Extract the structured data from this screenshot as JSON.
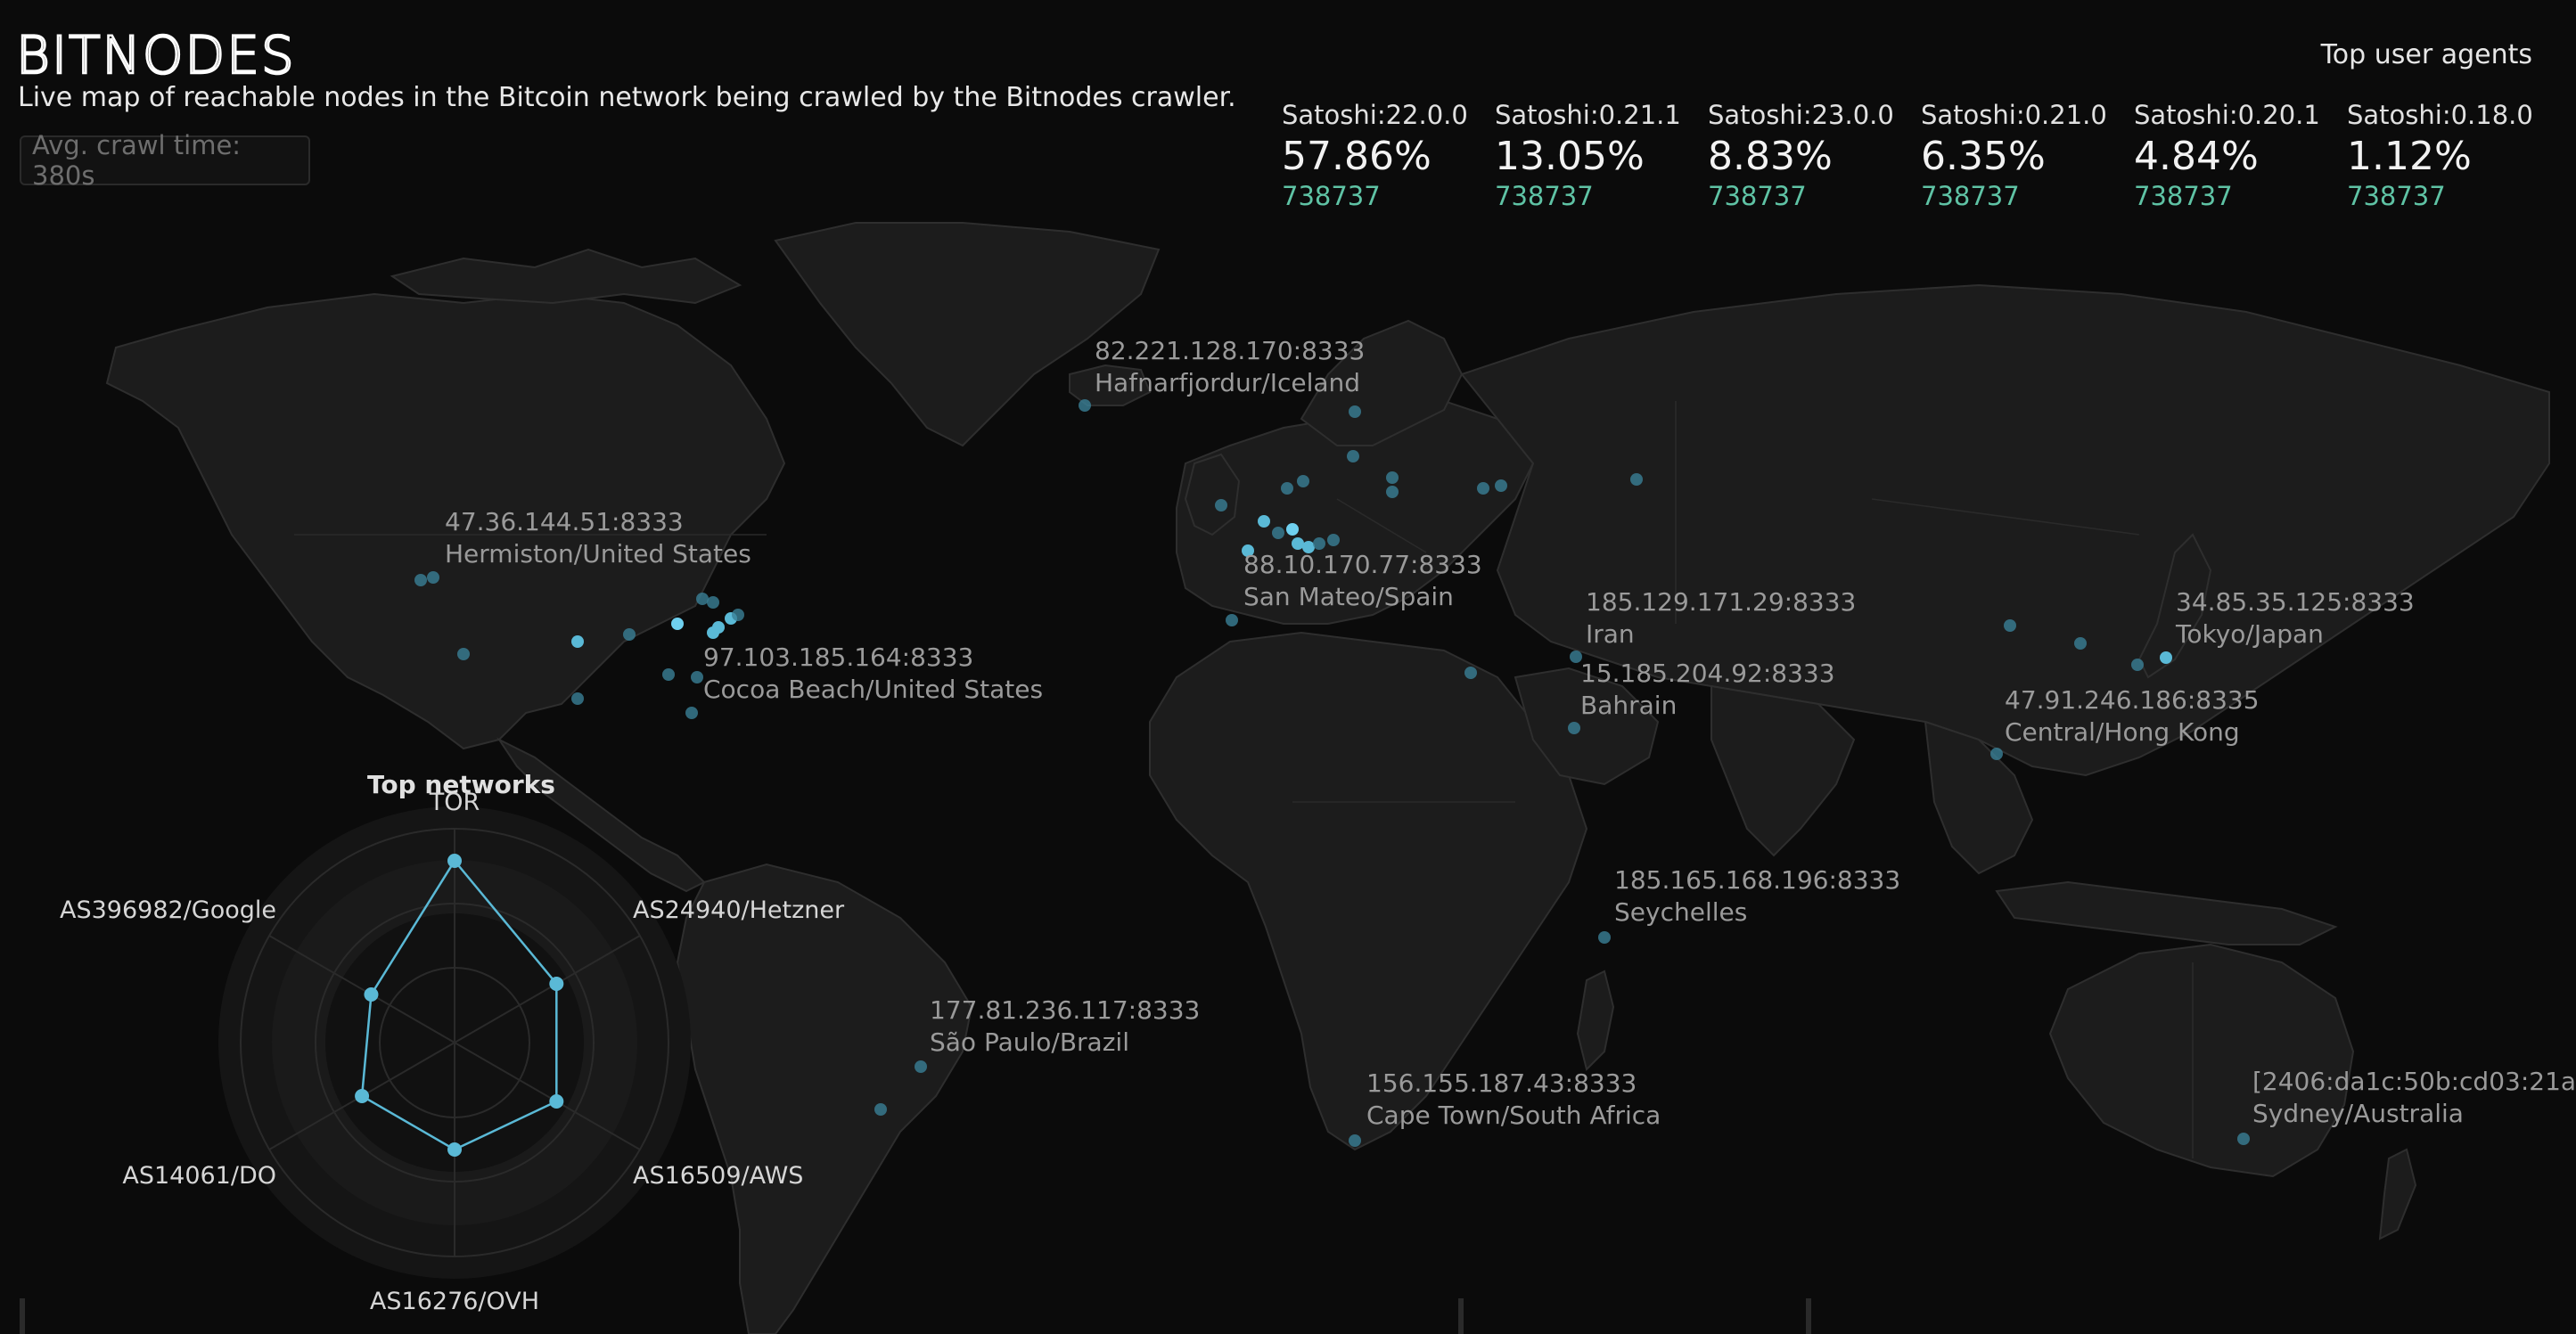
{
  "header": {
    "logo_text": "BITNODES",
    "subtitle": "Live map of reachable nodes in the Bitcoin network being crawled by the Bitnodes crawler.",
    "crawl_time": "Avg. crawl time: 380s"
  },
  "user_agents": {
    "title": "Top user agents",
    "items": [
      {
        "name": "Satoshi:22.0.0",
        "percent": "57.86%",
        "count": "738737"
      },
      {
        "name": "Satoshi:0.21.1",
        "percent": "13.05%",
        "count": "738737"
      },
      {
        "name": "Satoshi:23.0.0",
        "percent": "8.83%",
        "count": "738737"
      },
      {
        "name": "Satoshi:0.21.0",
        "percent": "6.35%",
        "count": "738737"
      },
      {
        "name": "Satoshi:0.20.1",
        "percent": "4.84%",
        "count": "738737"
      },
      {
        "name": "Satoshi:0.18.0",
        "percent": "1.12%",
        "count": "738737"
      }
    ]
  },
  "nodes": [
    {
      "address": "82.221.128.170:8333",
      "location": "Hafnarfjordur/Iceland"
    },
    {
      "address": "47.36.144.51:8333",
      "location": "Hermiston/United States"
    },
    {
      "address": "97.103.185.164:8333",
      "location": "Cocoa Beach/United States"
    },
    {
      "address": "88.10.170.77:8333",
      "location": "San Mateo/Spain"
    },
    {
      "address": "185.129.171.29:8333",
      "location": "Iran"
    },
    {
      "address": "15.185.204.92:8333",
      "location": "Bahrain"
    },
    {
      "address": "34.85.35.125:8333",
      "location": "Tokyo/Japan"
    },
    {
      "address": "47.91.246.186:8335",
      "location": "Central/Hong Kong"
    },
    {
      "address": "185.165.168.196:8333",
      "location": "Seychelles"
    },
    {
      "address": "177.81.236.117:8333",
      "location": "São Paulo/Brazil"
    },
    {
      "address": "156.155.187.43:8333",
      "location": "Cape Town/South Africa"
    },
    {
      "address": "[2406:da1c:50b:cd03:21a",
      "location": "Sydney/Australia"
    }
  ],
  "networks": {
    "title": "Top networks",
    "items": [
      {
        "name": "TOR",
        "value": 0.85
      },
      {
        "name": "AS24940/Hetzner",
        "value": 0.55
      },
      {
        "name": "AS16509/AWS",
        "value": 0.55
      },
      {
        "name": "AS16276/OVH",
        "value": 0.5
      },
      {
        "name": "AS14061/DO",
        "value": 0.5
      },
      {
        "name": "AS396982/Google",
        "value": 0.45
      }
    ]
  },
  "colors": {
    "background": "#0b0b0b",
    "land": "#1c1c1c",
    "node": "#5ab9d6",
    "count": "#5fc3a5",
    "radar_line": "#5ab9d6"
  }
}
